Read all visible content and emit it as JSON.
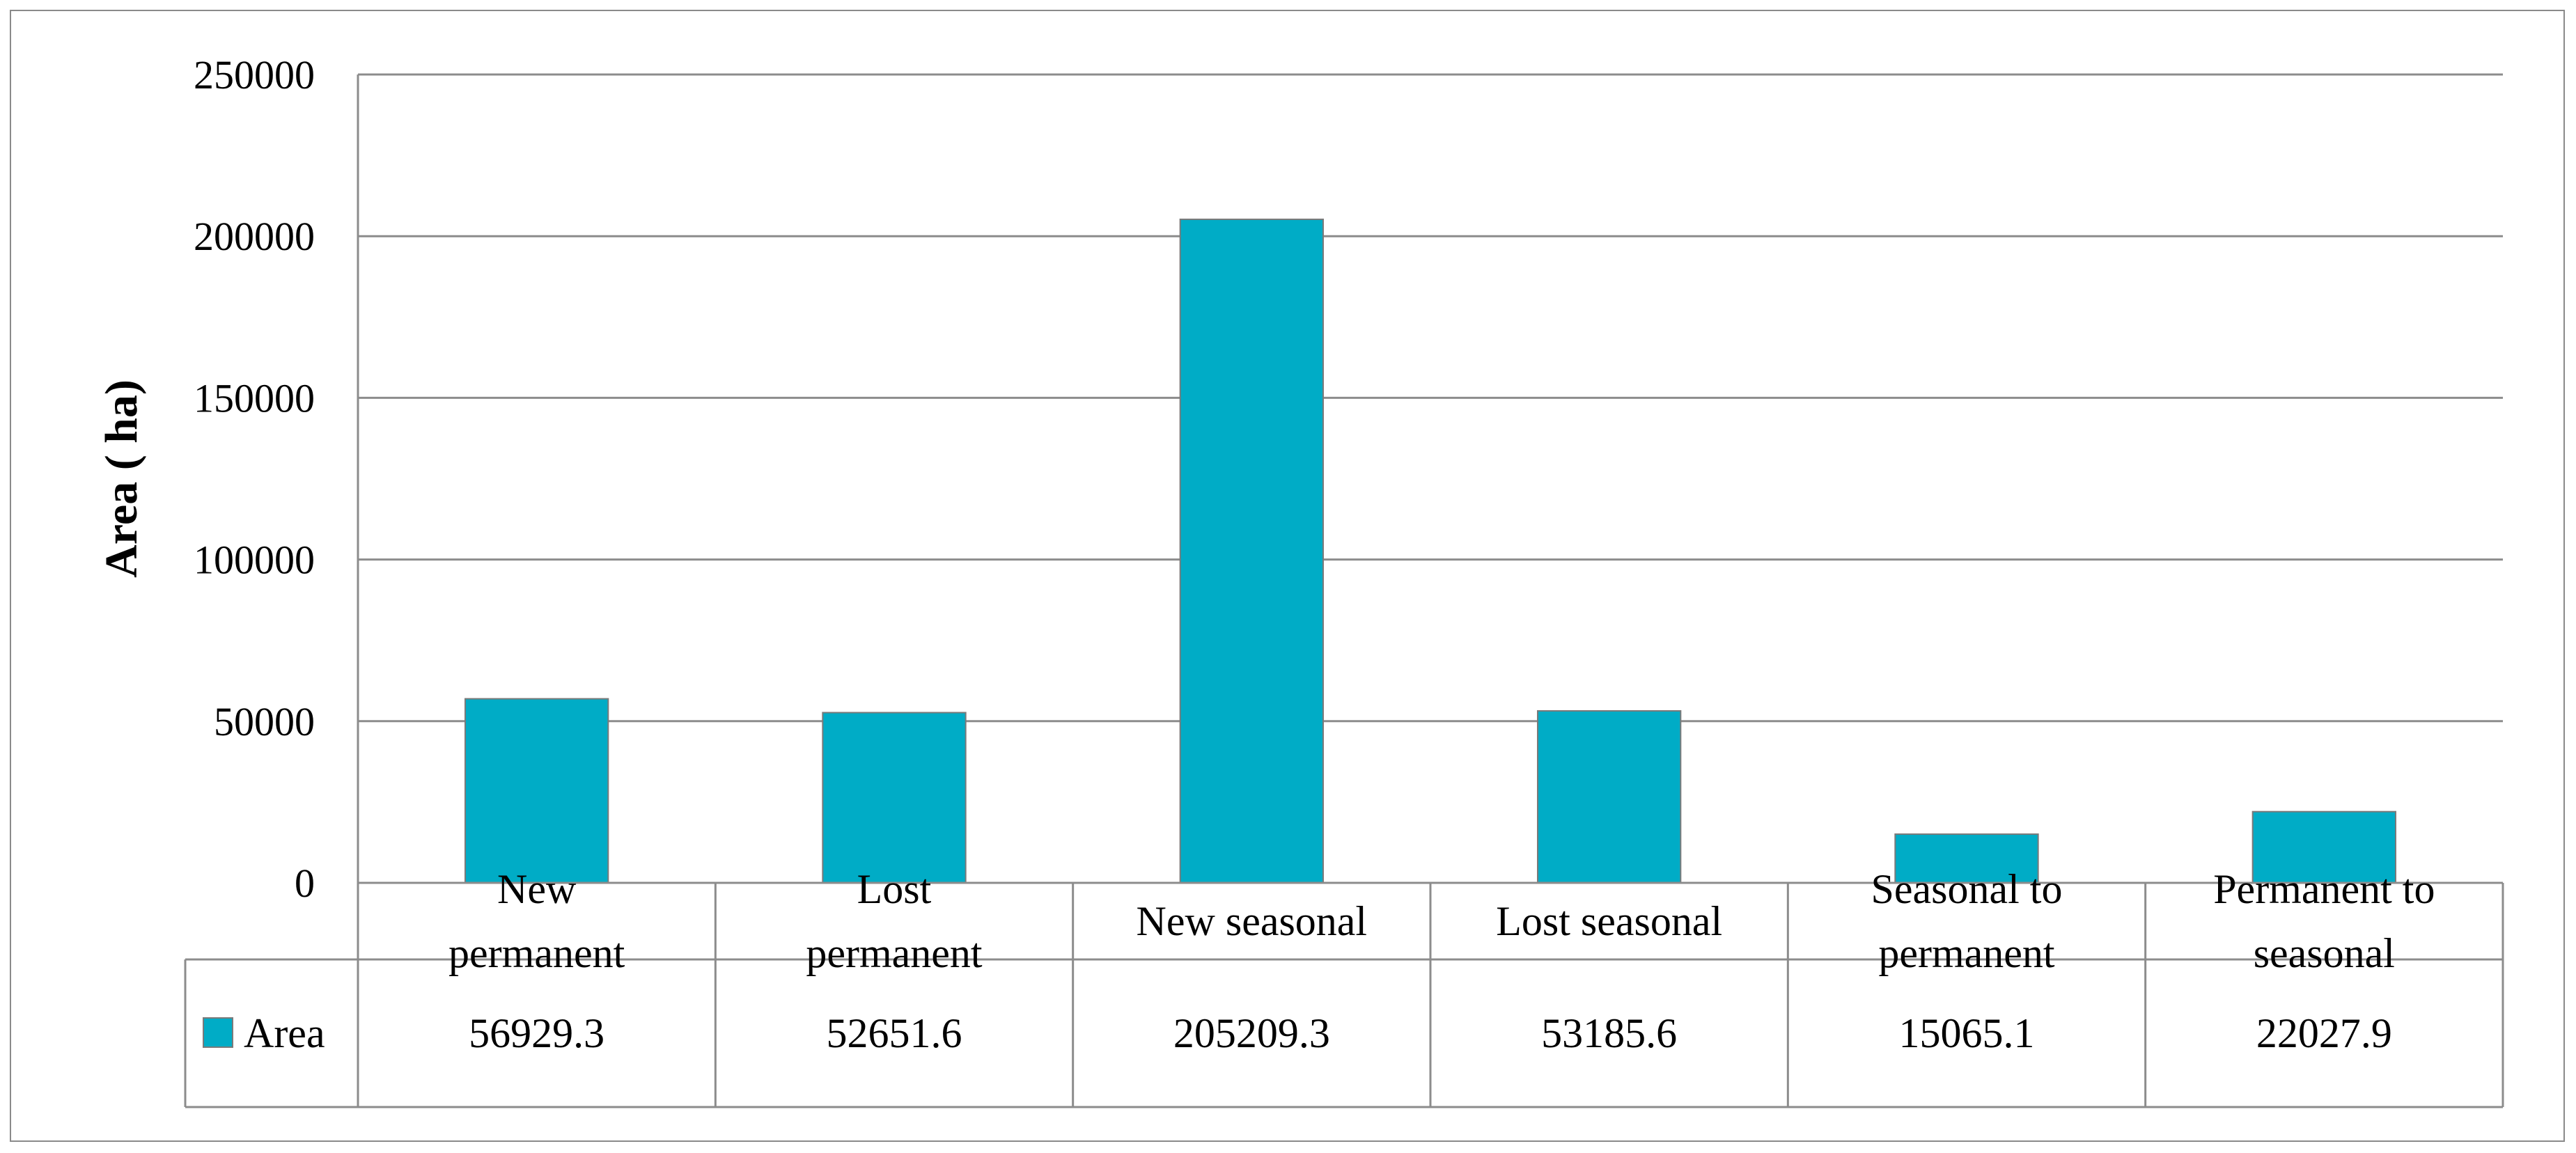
{
  "chart_data": {
    "type": "bar",
    "title": "",
    "xlabel": "",
    "ylabel": "Area ( ha)",
    "ylim": [
      0,
      250000
    ],
    "yticks": [
      "0",
      "50000",
      "100000",
      "150000",
      "200000",
      "250000"
    ],
    "grid": true,
    "categories": [
      [
        "New",
        "permanent"
      ],
      [
        "Lost",
        "permanent"
      ],
      [
        "New seasonal"
      ],
      [
        "Lost seasonal"
      ],
      [
        "Seasonal to",
        "permanent"
      ],
      [
        "Permanent to",
        "seasonal"
      ]
    ],
    "series": [
      {
        "name": "Area",
        "color": "#00ACC6",
        "values": [
          56929.3,
          52651.6,
          205209.3,
          53185.6,
          15065.1,
          22027.9
        ],
        "labels": [
          "56929.3",
          "52651.6",
          "205209.3",
          "53185.6",
          "15065.1",
          "22027.9"
        ]
      }
    ],
    "legend": "data-table"
  }
}
